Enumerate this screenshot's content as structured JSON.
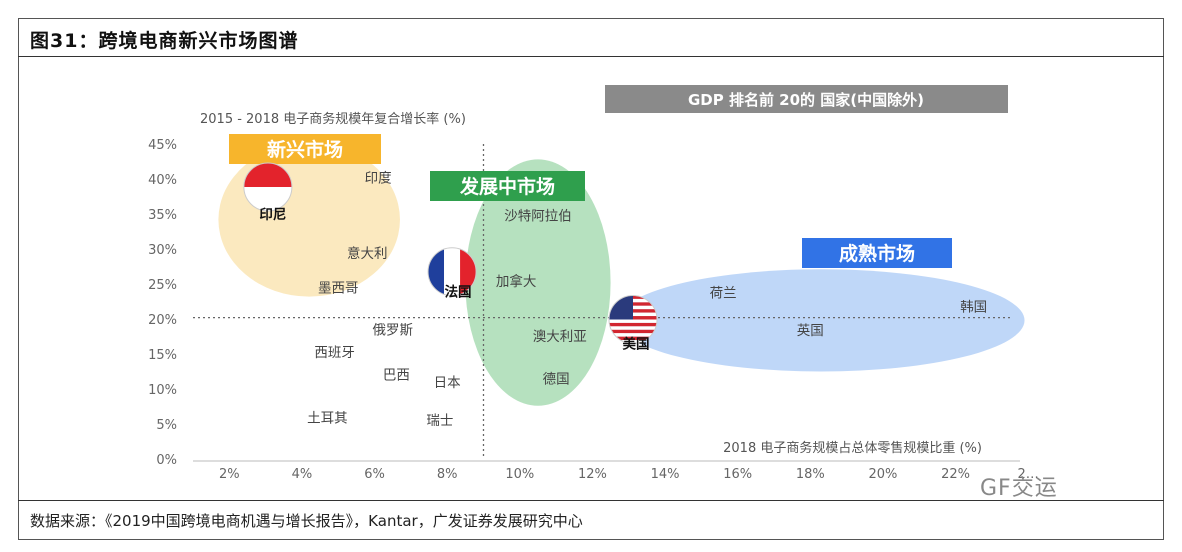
{
  "figure": {
    "title": "图31：跨境电商新兴市场图谱",
    "source": "数据来源：《2019中国跨境电商机遇与增长报告》，Kantar，广发证券发展研究中心",
    "watermark": "GF交运"
  },
  "chart_data": {
    "type": "scatter",
    "title": "GDP 排名前 20的 国家(中国除外)",
    "ylabel": "2015 - 2018 电子商务规模年复合增长率 (%)",
    "xlabel": "2018 电子商务规模占总体零售规模比重 (%)",
    "xlim": [
      1,
      23.5
    ],
    "ylim": [
      0,
      45
    ],
    "x_ticks": [
      "2%",
      "4%",
      "6%",
      "8%",
      "10%",
      "12%",
      "14%",
      "16%",
      "18%",
      "20%",
      "22%",
      "2…"
    ],
    "x_tick_values": [
      2,
      4,
      6,
      8,
      10,
      12,
      14,
      16,
      18,
      20,
      22,
      24
    ],
    "y_ticks": [
      "0%",
      "5%",
      "10%",
      "15%",
      "20%",
      "25%",
      "30%",
      "35%",
      "40%",
      "45%"
    ],
    "y_tick_values": [
      0,
      5,
      10,
      15,
      20,
      25,
      30,
      35,
      40,
      45
    ],
    "reference_lines": {
      "x": 9.0,
      "y": 20.2
    },
    "clusters": [
      {
        "label": "新兴市场",
        "color": "#f7b52c",
        "fill": "#fae5b4",
        "cx": 4.2,
        "cy": 34.2,
        "rx": 2.5,
        "ry": 11.0
      },
      {
        "label": "发展中市场",
        "color": "#2f9f4d",
        "fill": "#a9dcb4",
        "cx": 10.5,
        "cy": 25.2,
        "rx": 2.0,
        "ry": 17.6
      },
      {
        "label": "成熟市场",
        "color": "#3173e6",
        "fill": "#b4d0f7",
        "cx": 18.3,
        "cy": 19.8,
        "rx": 5.6,
        "ry": 7.3
      }
    ],
    "points": [
      {
        "name": "印度",
        "x": 6.1,
        "y": 40.2,
        "bold": false
      },
      {
        "name": "印尼",
        "x": 3.2,
        "y": 35.0,
        "bold": true,
        "flag": "indonesia"
      },
      {
        "name": "意大利",
        "x": 5.8,
        "y": 29.4,
        "bold": false
      },
      {
        "name": "墨西哥",
        "x": 5.0,
        "y": 24.5,
        "bold": false
      },
      {
        "name": "沙特阿拉伯",
        "x": 10.5,
        "y": 34.8,
        "bold": false
      },
      {
        "name": "加拿大",
        "x": 9.9,
        "y": 25.4,
        "bold": false
      },
      {
        "name": "法国",
        "x": 8.3,
        "y": 23.9,
        "bold": true,
        "flag": "france"
      },
      {
        "name": "俄罗斯",
        "x": 6.5,
        "y": 18.5,
        "bold": false
      },
      {
        "name": "西班牙",
        "x": 4.9,
        "y": 15.3,
        "bold": false
      },
      {
        "name": "澳大利亚",
        "x": 11.1,
        "y": 17.6,
        "bold": false
      },
      {
        "name": "巴西",
        "x": 6.6,
        "y": 12.1,
        "bold": false
      },
      {
        "name": "日本",
        "x": 8.0,
        "y": 11.0,
        "bold": false
      },
      {
        "name": "德国",
        "x": 11.0,
        "y": 11.5,
        "bold": false
      },
      {
        "name": "土耳其",
        "x": 4.7,
        "y": 5.9,
        "bold": false
      },
      {
        "name": "瑞士",
        "x": 7.8,
        "y": 5.6,
        "bold": false
      },
      {
        "name": "荷兰",
        "x": 15.6,
        "y": 23.8,
        "bold": false
      },
      {
        "name": "韩国",
        "x": 22.5,
        "y": 21.8,
        "bold": false
      },
      {
        "name": "英国",
        "x": 18.0,
        "y": 18.4,
        "bold": false
      },
      {
        "name": "美国",
        "x": 13.2,
        "y": 16.5,
        "bold": true,
        "flag": "usa"
      }
    ]
  }
}
